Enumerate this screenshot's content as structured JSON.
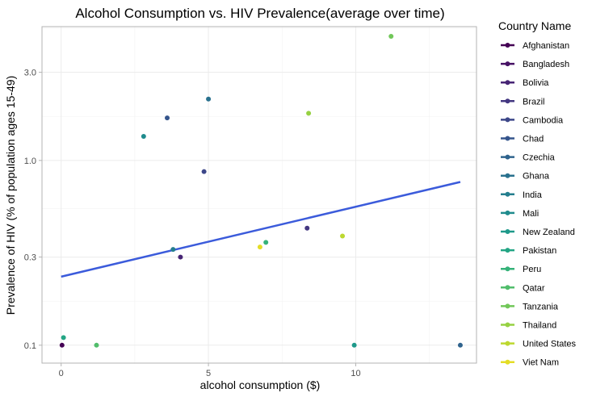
{
  "chart_data": {
    "type": "scatter",
    "title": "Alcohol Consumption vs. HIV Prevalence(average over time)",
    "xlabel": "alcohol consumption ($)",
    "ylabel": "Prevalence of HIV (% of population ages 15-49)",
    "x_scale": "linear",
    "y_scale": "log10",
    "xlim": [
      -0.65,
      14.1
    ],
    "ylim": [
      0.08,
      5.3
    ],
    "x_ticks": [
      0,
      5,
      10
    ],
    "x_tick_labels": [
      "0",
      "5",
      "10"
    ],
    "y_ticks": [
      0.1,
      0.3,
      1.0,
      3.0
    ],
    "y_tick_labels": [
      "0.1",
      "0.3",
      "1.0",
      "3.0"
    ],
    "grid": true,
    "legend": {
      "title": "Country Name",
      "position": "right",
      "entries": [
        {
          "name": "Afghanistan",
          "color": "#440154"
        },
        {
          "name": "Bangladesh",
          "color": "#471265"
        },
        {
          "name": "Bolivia",
          "color": "#472575"
        },
        {
          "name": "Brazil",
          "color": "#433781"
        },
        {
          "name": "Cambodia",
          "color": "#3d4789"
        },
        {
          "name": "Chad",
          "color": "#35558c"
        },
        {
          "name": "Czechia",
          "color": "#2f638d"
        },
        {
          "name": "Ghana",
          "color": "#29718e"
        },
        {
          "name": "India",
          "color": "#247e8e"
        },
        {
          "name": "Mali",
          "color": "#1f8b8d"
        },
        {
          "name": "New Zealand",
          "color": "#1e998a"
        },
        {
          "name": "Pakistan",
          "color": "#23a584"
        },
        {
          "name": "Peru",
          "color": "#35b279"
        },
        {
          "name": "Qatar",
          "color": "#51bd6b"
        },
        {
          "name": "Tanzania",
          "color": "#71c759"
        },
        {
          "name": "Thailand",
          "color": "#96d142"
        },
        {
          "name": "United States",
          "color": "#bdd82f"
        },
        {
          "name": "Viet Nam",
          "color": "#e4dd26"
        }
      ]
    },
    "points": [
      {
        "country": "Afghanistan",
        "x": 0.03,
        "y": 0.1
      },
      {
        "country": "Bolivia",
        "x": 4.05,
        "y": 0.3
      },
      {
        "country": "Brazil",
        "x": 8.35,
        "y": 0.43
      },
      {
        "country": "Cambodia",
        "x": 4.85,
        "y": 0.87
      },
      {
        "country": "Chad",
        "x": 3.6,
        "y": 1.7
      },
      {
        "country": "Czechia",
        "x": 13.55,
        "y": 0.1
      },
      {
        "country": "Ghana",
        "x": 5.0,
        "y": 2.15
      },
      {
        "country": "India",
        "x": 3.8,
        "y": 0.33
      },
      {
        "country": "Mali",
        "x": 2.8,
        "y": 1.35
      },
      {
        "country": "New Zealand",
        "x": 9.95,
        "y": 0.1
      },
      {
        "country": "Pakistan",
        "x": 0.08,
        "y": 0.11
      },
      {
        "country": "Peru",
        "x": 6.95,
        "y": 0.36
      },
      {
        "country": "Qatar",
        "x": 1.2,
        "y": 0.1
      },
      {
        "country": "Tanzania",
        "x": 11.2,
        "y": 4.7
      },
      {
        "country": "Thailand",
        "x": 8.4,
        "y": 1.8
      },
      {
        "country": "United States",
        "x": 9.55,
        "y": 0.39
      },
      {
        "country": "Viet Nam",
        "x": 6.75,
        "y": 0.34
      }
    ],
    "trend_line": {
      "type": "linear",
      "color": "#3b5bdb",
      "x": [
        0.0,
        13.55
      ],
      "y": [
        0.235,
        0.765
      ]
    }
  }
}
